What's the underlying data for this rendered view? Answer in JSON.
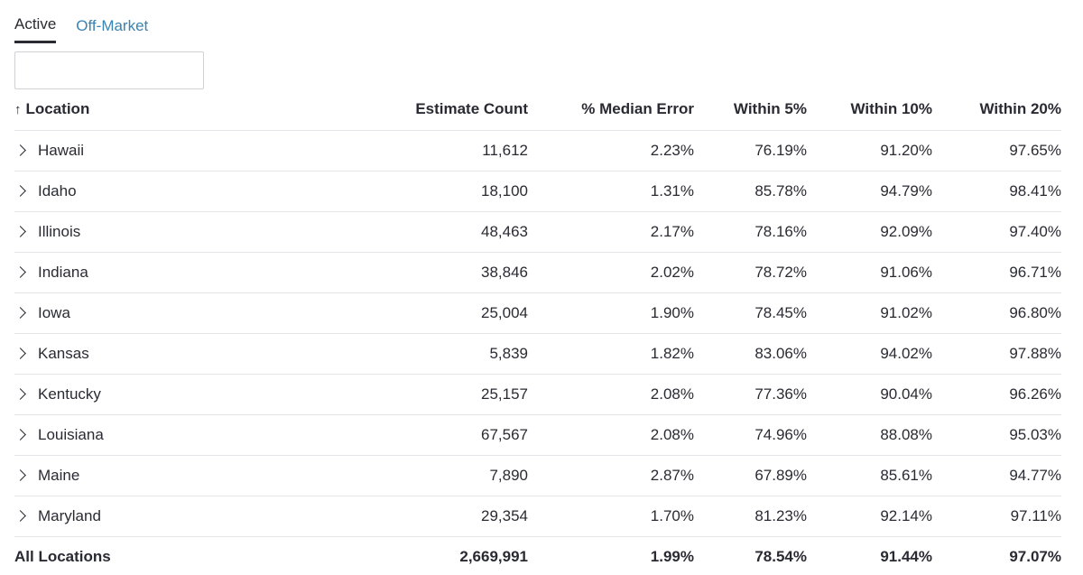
{
  "tabs": [
    {
      "label": "Active",
      "active": true
    },
    {
      "label": "Off-Market",
      "active": false
    }
  ],
  "search": {
    "value": "",
    "placeholder": ""
  },
  "columns": {
    "sort_indicator": "↑",
    "location": "Location",
    "estimate_count": "Estimate Count",
    "median_error": "% Median Error",
    "within_5": "Within 5%",
    "within_10": "Within 10%",
    "within_20": "Within 20%"
  },
  "rows": [
    {
      "location": "Hawaii",
      "estimate_count": "11,612",
      "median_error": "2.23%",
      "within_5": "76.19%",
      "within_10": "91.20%",
      "within_20": "97.65%"
    },
    {
      "location": "Idaho",
      "estimate_count": "18,100",
      "median_error": "1.31%",
      "within_5": "85.78%",
      "within_10": "94.79%",
      "within_20": "98.41%"
    },
    {
      "location": "Illinois",
      "estimate_count": "48,463",
      "median_error": "2.17%",
      "within_5": "78.16%",
      "within_10": "92.09%",
      "within_20": "97.40%"
    },
    {
      "location": "Indiana",
      "estimate_count": "38,846",
      "median_error": "2.02%",
      "within_5": "78.72%",
      "within_10": "91.06%",
      "within_20": "96.71%"
    },
    {
      "location": "Iowa",
      "estimate_count": "25,004",
      "median_error": "1.90%",
      "within_5": "78.45%",
      "within_10": "91.02%",
      "within_20": "96.80%"
    },
    {
      "location": "Kansas",
      "estimate_count": "5,839",
      "median_error": "1.82%",
      "within_5": "83.06%",
      "within_10": "94.02%",
      "within_20": "97.88%"
    },
    {
      "location": "Kentucky",
      "estimate_count": "25,157",
      "median_error": "2.08%",
      "within_5": "77.36%",
      "within_10": "90.04%",
      "within_20": "96.26%"
    },
    {
      "location": "Louisiana",
      "estimate_count": "67,567",
      "median_error": "2.08%",
      "within_5": "74.96%",
      "within_10": "88.08%",
      "within_20": "95.03%"
    },
    {
      "location": "Maine",
      "estimate_count": "7,890",
      "median_error": "2.87%",
      "within_5": "67.89%",
      "within_10": "85.61%",
      "within_20": "94.77%"
    },
    {
      "location": "Maryland",
      "estimate_count": "29,354",
      "median_error": "1.70%",
      "within_5": "81.23%",
      "within_10": "92.14%",
      "within_20": "97.11%"
    }
  ],
  "totals": {
    "location": "All Locations",
    "estimate_count": "2,669,991",
    "median_error": "1.99%",
    "within_5": "78.54%",
    "within_10": "91.44%",
    "within_20": "97.07%"
  },
  "colors": {
    "text": "#2a2a33",
    "link": "#3b83b0",
    "divider": "#e4e4e8"
  },
  "icons": {
    "sort": "arrow-up-icon",
    "expand": "chevron-right-icon"
  }
}
